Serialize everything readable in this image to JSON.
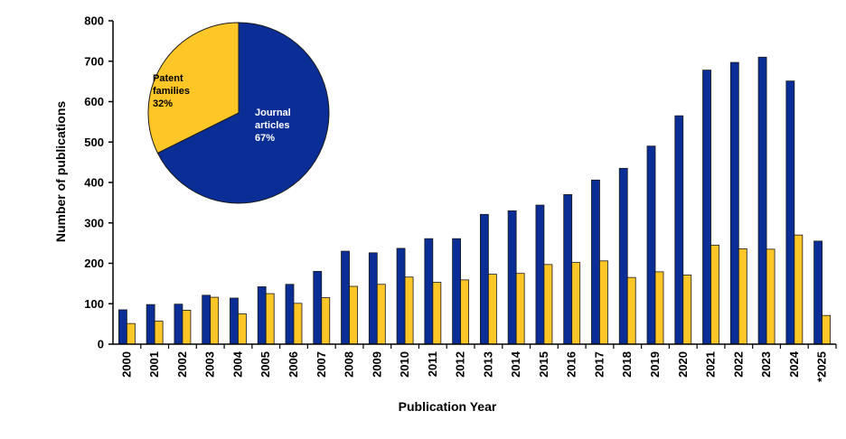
{
  "chart_data": [
    {
      "type": "bar",
      "title": "",
      "xlabel": "Publication Year",
      "ylabel": "Number of publications",
      "ylim": [
        0,
        800
      ],
      "y_ticks": [
        0,
        100,
        200,
        300,
        400,
        500,
        600,
        700,
        800
      ],
      "grid": false,
      "legend": "none",
      "categories": [
        "2000",
        "2001",
        "2002",
        "2003",
        "2004",
        "2005",
        "2006",
        "2007",
        "2008",
        "2009",
        "2010",
        "2011",
        "2012",
        "2013",
        "2014",
        "2015",
        "2016",
        "2017",
        "2018",
        "2019",
        "2020",
        "2021",
        "2022",
        "2023",
        "2024",
        "*2025"
      ],
      "series": [
        {
          "color": "#0a2e96",
          "values": [
            85,
            98,
            99,
            121,
            114,
            142,
            148,
            180,
            230,
            226,
            237,
            261,
            261,
            321,
            330,
            344,
            370,
            406,
            435,
            490,
            565,
            678,
            697,
            710,
            651,
            255
          ]
        },
        {
          "color": "#ffc627",
          "values": [
            51,
            57,
            84,
            116,
            75,
            125,
            101,
            115,
            143,
            148,
            166,
            153,
            159,
            173,
            175,
            197,
            202,
            206,
            165,
            179,
            171,
            245,
            236,
            235,
            270,
            71
          ]
        }
      ]
    },
    {
      "type": "pie",
      "slices": [
        {
          "label_lines": [
            "Journal",
            "articles",
            "67%"
          ],
          "value": 67,
          "color": "#0a2e96",
          "text_color": "#ffffff"
        },
        {
          "label_lines": [
            "Patent",
            "families",
            "32%"
          ],
          "value": 32,
          "color": "#ffc627",
          "text_color": "#000000"
        }
      ]
    }
  ]
}
